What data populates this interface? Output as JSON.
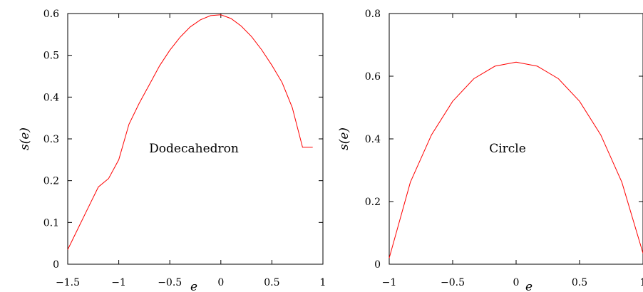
{
  "chart_data": [
    {
      "type": "line",
      "xlabel": "e",
      "ylabel": "s(e)",
      "xlim": [
        -1.5,
        1.0
      ],
      "ylim": [
        0,
        0.6
      ],
      "xticks": [
        -1.5,
        -1,
        -0.5,
        0,
        0.5,
        1
      ],
      "yticks": [
        0,
        0.1,
        0.2,
        0.3,
        0.4,
        0.5,
        0.6
      ],
      "xtick_labels": [
        "−1.5",
        "−1",
        "−0.5",
        "0",
        "0.5",
        "1"
      ],
      "ytick_labels": [
        "0",
        "0.1",
        "0.2",
        "0.3",
        "0.4",
        "0.5",
        "0.6"
      ],
      "grid": false,
      "annotation": "Dodecahedron",
      "color": "#ff0000",
      "series": [
        {
          "x": [
            -1.5,
            -1.4,
            -1.3,
            -1.2,
            -1.1,
            -1.0,
            -0.9,
            -0.8,
            -0.7,
            -0.6,
            -0.5,
            -0.4,
            -0.3,
            -0.2,
            -0.1,
            0.0,
            0.1,
            0.2,
            0.3,
            0.4,
            0.5,
            0.6,
            0.7,
            0.8,
            0.9
          ],
          "y": [
            0.035,
            0.085,
            0.135,
            0.185,
            0.205,
            0.25,
            0.335,
            0.385,
            0.43,
            0.475,
            0.512,
            0.543,
            0.568,
            0.585,
            0.595,
            0.597,
            0.588,
            0.57,
            0.545,
            0.513,
            0.476,
            0.435,
            0.375,
            0.28,
            0.28
          ]
        }
      ]
    },
    {
      "type": "line",
      "xlabel": "e",
      "ylabel": "s(e)",
      "xlim": [
        -1.0,
        1.0
      ],
      "ylim": [
        0,
        0.8
      ],
      "xticks": [
        -1,
        -0.5,
        0,
        0.5,
        1
      ],
      "yticks": [
        0,
        0.2,
        0.4,
        0.6,
        0.8
      ],
      "xtick_labels": [
        "−1",
        "−0.5",
        "0",
        "0.5",
        "1"
      ],
      "ytick_labels": [
        "0",
        "0.2",
        "0.4",
        "0.6",
        "0.8"
      ],
      "grid": false,
      "annotation": "Circle",
      "color": "#ff0000",
      "series": [
        {
          "x": [
            -1.0,
            -0.8333,
            -0.6667,
            -0.5,
            -0.3333,
            -0.1667,
            0.0,
            0.1667,
            0.3333,
            0.5,
            0.6667,
            0.8333,
            1.0
          ],
          "y": [
            0.02,
            0.262,
            0.413,
            0.52,
            0.592,
            0.632,
            0.645,
            0.632,
            0.592,
            0.52,
            0.413,
            0.262,
            0.035
          ]
        }
      ]
    }
  ]
}
